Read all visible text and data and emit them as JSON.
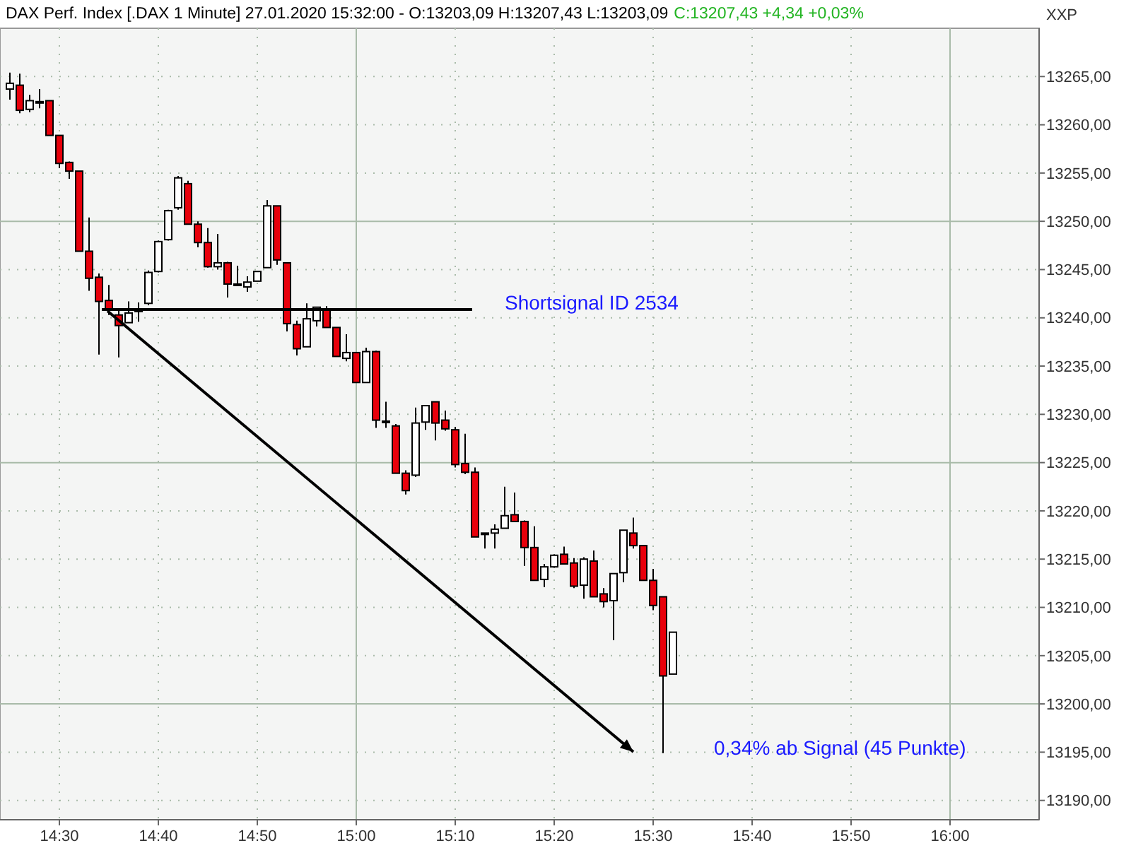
{
  "chart_data": {
    "type": "candlestick",
    "title": "DAX Perf. Index [.DAX  1 Minute] 27.01.2020 15:32:00 - O:13203,09 H:13207,43 L:13203,09",
    "subtitle": "C:13207,43 +4,34 +0,03%",
    "ylabel": "XXP",
    "x": [
      "2020-01-27T14:25",
      "2020-01-27T14:26",
      "2020-01-27T14:27",
      "2020-01-27T14:28",
      "2020-01-27T14:29",
      "2020-01-27T14:30",
      "2020-01-27T14:31",
      "2020-01-27T14:32",
      "2020-01-27T14:33",
      "2020-01-27T14:34",
      "2020-01-27T14:35",
      "2020-01-27T14:36",
      "2020-01-27T14:37",
      "2020-01-27T14:38",
      "2020-01-27T14:39",
      "2020-01-27T14:40",
      "2020-01-27T14:41",
      "2020-01-27T14:42",
      "2020-01-27T14:43",
      "2020-01-27T14:44",
      "2020-01-27T14:45",
      "2020-01-27T14:46",
      "2020-01-27T14:47",
      "2020-01-27T14:48",
      "2020-01-27T14:49",
      "2020-01-27T14:50",
      "2020-01-27T14:51",
      "2020-01-27T14:52",
      "2020-01-27T14:53",
      "2020-01-27T14:54",
      "2020-01-27T14:55",
      "2020-01-27T14:56",
      "2020-01-27T14:57",
      "2020-01-27T14:58",
      "2020-01-27T14:59",
      "2020-01-27T15:00",
      "2020-01-27T15:01",
      "2020-01-27T15:02",
      "2020-01-27T15:03",
      "2020-01-27T15:04",
      "2020-01-27T15:05",
      "2020-01-27T15:06",
      "2020-01-27T15:07",
      "2020-01-27T15:08",
      "2020-01-27T15:09",
      "2020-01-27T15:10",
      "2020-01-27T15:11",
      "2020-01-27T15:12",
      "2020-01-27T15:13",
      "2020-01-27T15:14",
      "2020-01-27T15:15",
      "2020-01-27T15:16",
      "2020-01-27T15:17",
      "2020-01-27T15:18",
      "2020-01-27T15:19",
      "2020-01-27T15:20",
      "2020-01-27T15:21",
      "2020-01-27T15:22",
      "2020-01-27T15:23",
      "2020-01-27T15:24",
      "2020-01-27T15:25",
      "2020-01-27T15:26",
      "2020-01-27T15:27",
      "2020-01-27T15:28",
      "2020-01-27T15:29",
      "2020-01-27T15:30",
      "2020-01-27T15:31",
      "2020-01-27T15:32"
    ],
    "ohlc": [
      [
        13263.7,
        13265.4,
        13262.6,
        13264.3
      ],
      [
        13264.1,
        13265.3,
        13261.2,
        13261.5
      ],
      [
        13261.6,
        13263.1,
        13261.3,
        13262.5
      ],
      [
        13262.4,
        13263.7,
        13261.7,
        13262.4
      ],
      [
        13262.5,
        13262.5,
        13258.9,
        13258.9
      ],
      [
        13258.9,
        13258.9,
        13255.5,
        13256.0
      ],
      [
        13256.1,
        13256.2,
        13254.4,
        13255.2
      ],
      [
        13255.2,
        13255.2,
        13246.9,
        13246.9
      ],
      [
        13246.9,
        13250.4,
        13242.8,
        13244.1
      ],
      [
        13244.2,
        13244.6,
        13236.2,
        13241.7
      ],
      [
        13241.8,
        13243.4,
        13240.3,
        13240.8
      ],
      [
        13240.3,
        13240.8,
        13235.9,
        13239.2
      ],
      [
        13239.5,
        13241.7,
        13239.5,
        13240.5
      ],
      [
        13240.8,
        13241.6,
        13239.6,
        13240.8
      ],
      [
        13241.5,
        13244.9,
        13241.3,
        13244.7
      ],
      [
        13244.8,
        13248.0,
        13244.7,
        13247.9
      ],
      [
        13248.1,
        13251.2,
        13248.0,
        13251.1
      ],
      [
        13251.4,
        13254.7,
        13251.2,
        13254.5
      ],
      [
        13253.9,
        13254.2,
        13249.7,
        13249.7
      ],
      [
        13249.7,
        13250.0,
        13247.3,
        13247.8
      ],
      [
        13247.8,
        13249.3,
        13245.2,
        13245.3
      ],
      [
        13245.3,
        13248.7,
        13245.0,
        13245.7
      ],
      [
        13245.7,
        13245.8,
        13242.1,
        13243.5
      ],
      [
        13243.5,
        13245.4,
        13243.5,
        13243.5
      ],
      [
        13243.2,
        13244.3,
        13242.7,
        13243.7
      ],
      [
        13243.8,
        13244.8,
        13243.8,
        13244.8
      ],
      [
        13245.2,
        13252.2,
        13245.2,
        13251.6
      ],
      [
        13251.6,
        13251.6,
        13245.5,
        13246.0
      ],
      [
        13245.7,
        13245.7,
        13238.6,
        13239.4
      ],
      [
        13239.3,
        13239.7,
        13236.1,
        13236.8
      ],
      [
        13237.0,
        13241.5,
        13237.0,
        13239.9
      ],
      [
        13239.7,
        13241.1,
        13239.1,
        13241.1
      ],
      [
        13240.9,
        13241.2,
        13239.0,
        13239.0
      ],
      [
        13239.0,
        13239.0,
        13236.0,
        13236.0
      ],
      [
        13235.8,
        13238.3,
        13235.5,
        13236.4
      ],
      [
        13236.4,
        13236.4,
        13233.3,
        13233.3
      ],
      [
        13233.3,
        13236.9,
        13233.3,
        13236.5
      ],
      [
        13236.5,
        13236.6,
        13228.6,
        13229.4
      ],
      [
        13229.3,
        13231.3,
        13228.6,
        13229.3
      ],
      [
        13228.8,
        13229.0,
        13223.9,
        13223.9
      ],
      [
        13223.9,
        13224.2,
        13221.7,
        13222.1
      ],
      [
        13223.7,
        13230.7,
        13223.5,
        13229.1
      ],
      [
        13229.2,
        13230.9,
        13228.4,
        13230.9
      ],
      [
        13231.3,
        13231.3,
        13227.3,
        13229.1
      ],
      [
        13229.4,
        13230.4,
        13228.3,
        13228.5
      ],
      [
        13228.4,
        13228.7,
        13224.5,
        13224.8
      ],
      [
        13224.9,
        13228.0,
        13223.8,
        13224.0
      ],
      [
        13224.0,
        13224.5,
        13217.3,
        13217.3
      ],
      [
        13217.7,
        13217.7,
        13216.1,
        13217.7
      ],
      [
        13217.7,
        13218.6,
        13216.1,
        13218.1
      ],
      [
        13218.2,
        13222.5,
        13218.2,
        13219.5
      ],
      [
        13219.6,
        13221.9,
        13218.9,
        13218.9
      ],
      [
        13218.9,
        13219.0,
        13214.3,
        13216.2
      ],
      [
        13216.2,
        13218.4,
        13212.8,
        13212.8
      ],
      [
        13212.9,
        13214.5,
        13212.1,
        13214.2
      ],
      [
        13214.2,
        13215.5,
        13214.1,
        13215.4
      ],
      [
        13215.5,
        13216.3,
        13214.5,
        13214.5
      ],
      [
        13214.6,
        13215.1,
        13212.0,
        13212.2
      ],
      [
        13212.3,
        13215.2,
        13210.9,
        13215.0
      ],
      [
        13214.8,
        13215.9,
        13211.1,
        13211.1
      ],
      [
        13211.4,
        13212.0,
        13210.0,
        13210.6
      ],
      [
        13210.7,
        13213.5,
        13206.6,
        13213.5
      ],
      [
        13213.6,
        13218.0,
        13212.6,
        13218.0
      ],
      [
        13217.7,
        13219.3,
        13216.1,
        13216.4
      ],
      [
        13216.4,
        13216.4,
        13212.8,
        13212.8
      ],
      [
        13212.8,
        13214.0,
        13209.7,
        13210.2
      ],
      [
        13211.1,
        13211.1,
        13194.9,
        13202.9
      ],
      [
        13203.09,
        13207.43,
        13203.09,
        13207.43
      ]
    ],
    "colors": [
      "#ffffff",
      "#e8000b",
      "#ffffff",
      "#ffffff",
      "#e8000b",
      "#e8000b",
      "#e8000b",
      "#e8000b",
      "#e8000b",
      "#e8000b",
      "#e8000b",
      "#e8000b",
      "#ffffff",
      "#ffffff",
      "#ffffff",
      "#ffffff",
      "#ffffff",
      "#ffffff",
      "#e8000b",
      "#e8000b",
      "#e8000b",
      "#ffffff",
      "#e8000b",
      "#ffffff",
      "#ffffff",
      "#ffffff",
      "#ffffff",
      "#e8000b",
      "#e8000b",
      "#e8000b",
      "#ffffff",
      "#ffffff",
      "#e8000b",
      "#e8000b",
      "#ffffff",
      "#e8000b",
      "#ffffff",
      "#e8000b",
      "#ffffff",
      "#e8000b",
      "#e8000b",
      "#ffffff",
      "#ffffff",
      "#e8000b",
      "#e8000b",
      "#e8000b",
      "#e8000b",
      "#e8000b",
      "#ffffff",
      "#ffffff",
      "#ffffff",
      "#e8000b",
      "#e8000b",
      "#e8000b",
      "#ffffff",
      "#ffffff",
      "#e8000b",
      "#e8000b",
      "#ffffff",
      "#e8000b",
      "#e8000b",
      "#ffffff",
      "#ffffff",
      "#e8000b",
      "#e8000b",
      "#e8000b",
      "#e8000b",
      "#ffffff"
    ],
    "xlim": [
      "2020-01-27T14:24",
      "2020-01-27T16:09"
    ],
    "xticks": [
      {
        "value": "2020-01-27T14:30",
        "label": "14:30"
      },
      {
        "value": "2020-01-27T14:40",
        "label": "14:40"
      },
      {
        "value": "2020-01-27T14:50",
        "label": "14:50"
      },
      {
        "value": "2020-01-27T15:00",
        "label": "15:00"
      },
      {
        "value": "2020-01-27T15:10",
        "label": "15:10"
      },
      {
        "value": "2020-01-27T15:20",
        "label": "15:20"
      },
      {
        "value": "2020-01-27T15:30",
        "label": "15:30"
      },
      {
        "value": "2020-01-27T15:40",
        "label": "15:40"
      },
      {
        "value": "2020-01-27T15:50",
        "label": "15:50"
      },
      {
        "value": "2020-01-27T16:00",
        "label": "16:00"
      }
    ],
    "ylim": [
      13188,
      13270
    ],
    "yticks": [
      {
        "value": 13190,
        "label": "13190,00"
      },
      {
        "value": 13195,
        "label": "13195,00"
      },
      {
        "value": 13200,
        "label": "13200,00"
      },
      {
        "value": 13205,
        "label": "13205,00"
      },
      {
        "value": 13210,
        "label": "13210,00"
      },
      {
        "value": 13215,
        "label": "13215,00"
      },
      {
        "value": 13220,
        "label": "13220,00"
      },
      {
        "value": 13225,
        "label": "13225,00"
      },
      {
        "value": 13230,
        "label": "13230,00"
      },
      {
        "value": 13235,
        "label": "13235,00"
      },
      {
        "value": 13240,
        "label": "13240,00"
      },
      {
        "value": 13245,
        "label": "13245,00"
      },
      {
        "value": 13250,
        "label": "13250,00"
      },
      {
        "value": 13255,
        "label": "13255,00"
      },
      {
        "value": 13260,
        "label": "13260,00"
      },
      {
        "value": 13265,
        "label": "13265,00"
      }
    ],
    "grid": true,
    "annotations": [
      "Shortsignal ID 2534",
      "0,34% ab Signal (45 Punkte)"
    ]
  }
}
